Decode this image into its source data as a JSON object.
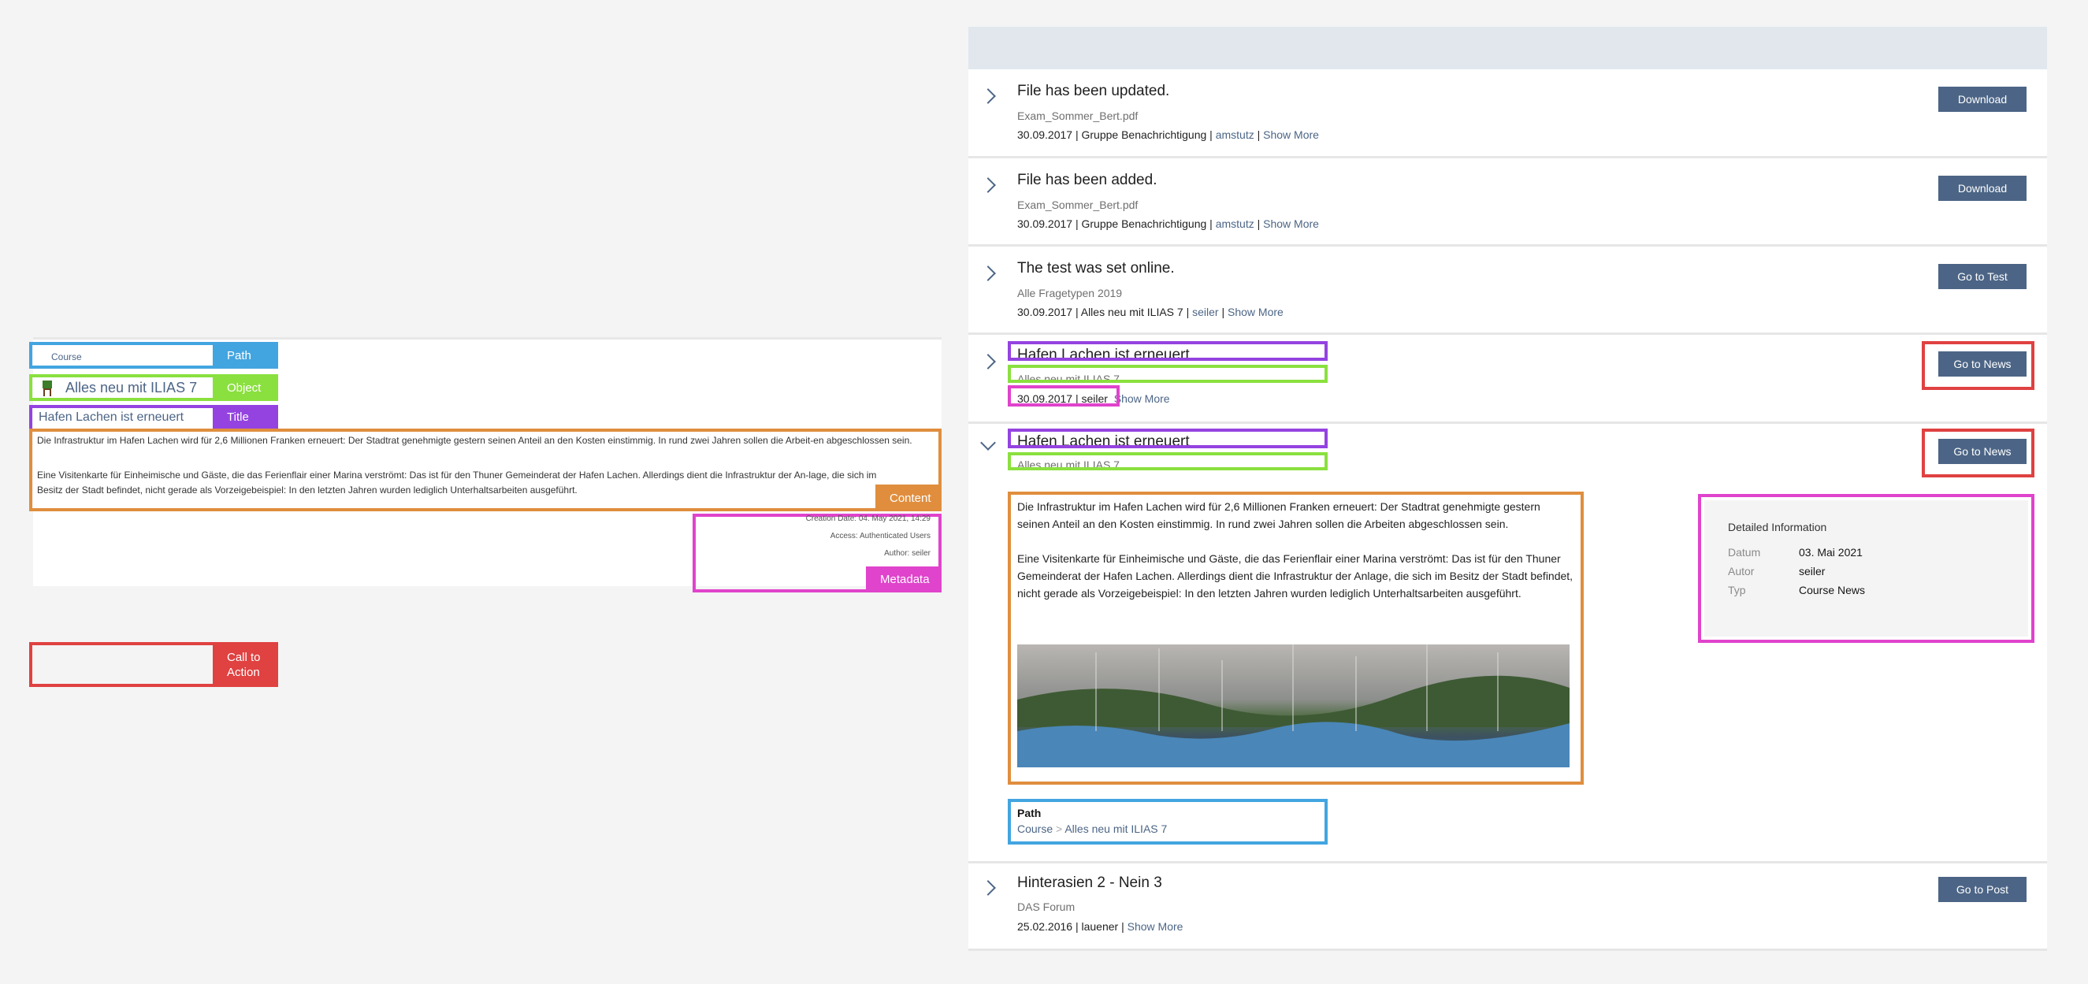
{
  "legend": {
    "path": {
      "label": "Path",
      "sample": "Course"
    },
    "object": {
      "label": "Object",
      "sample": "Alles neu mit ILIAS 7"
    },
    "title": {
      "label": "Title",
      "sample": "Hafen Lachen ist erneuert"
    },
    "content": {
      "label": "Content",
      "p1": "Die Infrastruktur im Hafen Lachen wird für 2,6 Millionen Franken erneuert: Der Stadtrat genehmigte gestern seinen Anteil an den Kosten einstimmig. In rund zwei Jahren sollen die Arbeit-en abgeschlossen sein.",
      "p2": "Eine Visitenkarte für Einheimische und Gäste, die das Ferienflair einer Marina verströmt: Das ist für den Thuner Gemeinderat der Hafen Lachen. Allerdings dient die Infrastruktur der An-lage, die sich im Besitz der Stadt befindet, nicht gerade als Vorzeigebeispiel: In den letzten Jahren wurden lediglich Unterhaltsarbeiten ausgeführt."
    },
    "metadata": {
      "label": "Metadata",
      "creation": "Creation Date: 04. May 2021, 14:29",
      "access": "Access: Authenticated Users",
      "author": "Author: seiler"
    },
    "cta": {
      "label1": "Call to",
      "label2": "Action"
    }
  },
  "colors": {
    "path": "#42a5e0",
    "object": "#8ae03e",
    "title": "#9443e0",
    "content": "#e08e3e",
    "metadata": "#e043cc",
    "cta": "#e04141",
    "button": "#4c6586"
  },
  "items": [
    {
      "title": "File has been updated.",
      "subtitle": "Exam_Sommer_Bert.pdf",
      "date": "30.09.2017",
      "context": "Gruppe Benachrichtigung",
      "author": "amstutz",
      "more": "Show More",
      "action": "Download"
    },
    {
      "title": "File has been added.",
      "subtitle": "Exam_Sommer_Bert.pdf",
      "date": "30.09.2017",
      "context": "Gruppe Benachrichtigung",
      "author": "amstutz",
      "more": "Show More",
      "action": "Download"
    },
    {
      "title": "The test was set online.",
      "subtitle": "Alle Fragetypen 2019",
      "date": "30.09.2017",
      "context": "Alles neu mit ILIAS 7",
      "author": "seiler",
      "more": "Show More",
      "action": "Go to Test"
    },
    {
      "title": "Hafen Lachen ist erneuert",
      "subtitle": "Alles neu mit ILIAS 7",
      "date": "30.09.2017",
      "author": "seiler",
      "more": "Show More",
      "action": "Go to News"
    },
    {
      "title": "Hafen Lachen ist erneuert",
      "subtitle": "Alles neu mit ILIAS 7",
      "action": "Go to News",
      "p1": "Die Infrastruktur im Hafen Lachen wird für 2,6 Millionen Franken erneuert: Der Stadtrat genehmigte gestern seinen Anteil an den Kosten einstimmig. In rund zwei Jahren sollen die Arbeiten abgeschlossen sein.",
      "p2": "Eine Visitenkarte für Einheimische und Gäste, die das Ferienflair einer Marina verströmt: Das ist für den Thuner Gemeinderat der Hafen Lachen. Allerdings dient die Infrastruktur der Anlage, die sich im Besitz der Stadt befindet, nicht gerade als Vorzeigebeispiel: In den letzten Jahren wurden lediglich Unterhaltsarbeiten ausgeführt.",
      "details": {
        "heading": "Detailed Information",
        "rows": [
          {
            "k": "Datum",
            "v": "03. Mai 2021"
          },
          {
            "k": "Autor",
            "v": "seiler"
          },
          {
            "k": "Typ",
            "v": "Course News"
          }
        ]
      },
      "path": {
        "label": "Path",
        "crumb1": "Course",
        "sep": ">",
        "crumb2": "Alles neu mit ILIAS 7"
      }
    },
    {
      "title": "Hinterasien 2 - Nein 3",
      "subtitle": "DAS Forum",
      "date": "25.02.2016",
      "author": "lauener",
      "more": "Show More",
      "action": "Go to Post"
    }
  ]
}
